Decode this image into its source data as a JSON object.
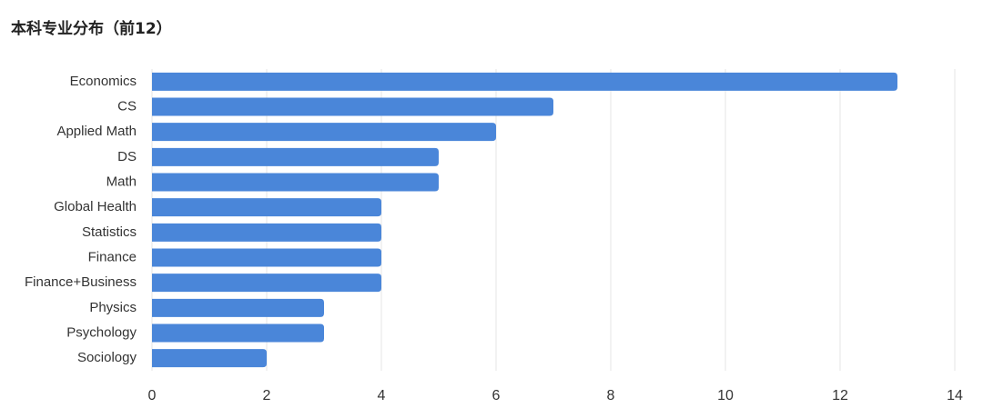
{
  "chart_data": {
    "type": "bar",
    "orientation": "horizontal",
    "title": "本科专业分布（前12）",
    "categories": [
      "Economics",
      "CS",
      "Applied Math",
      "DS",
      "Math",
      "Global Health",
      "Statistics",
      "Finance",
      "Finance+Business",
      "Physics",
      "Psychology",
      "Sociology"
    ],
    "values": [
      13,
      7,
      6,
      5,
      5,
      4,
      4,
      4,
      4,
      3,
      3,
      2
    ],
    "color": "#4a86d9",
    "xlim": [
      0,
      14
    ],
    "xticks": [
      0,
      2,
      4,
      6,
      8,
      10,
      12,
      14
    ],
    "grid": true
  }
}
